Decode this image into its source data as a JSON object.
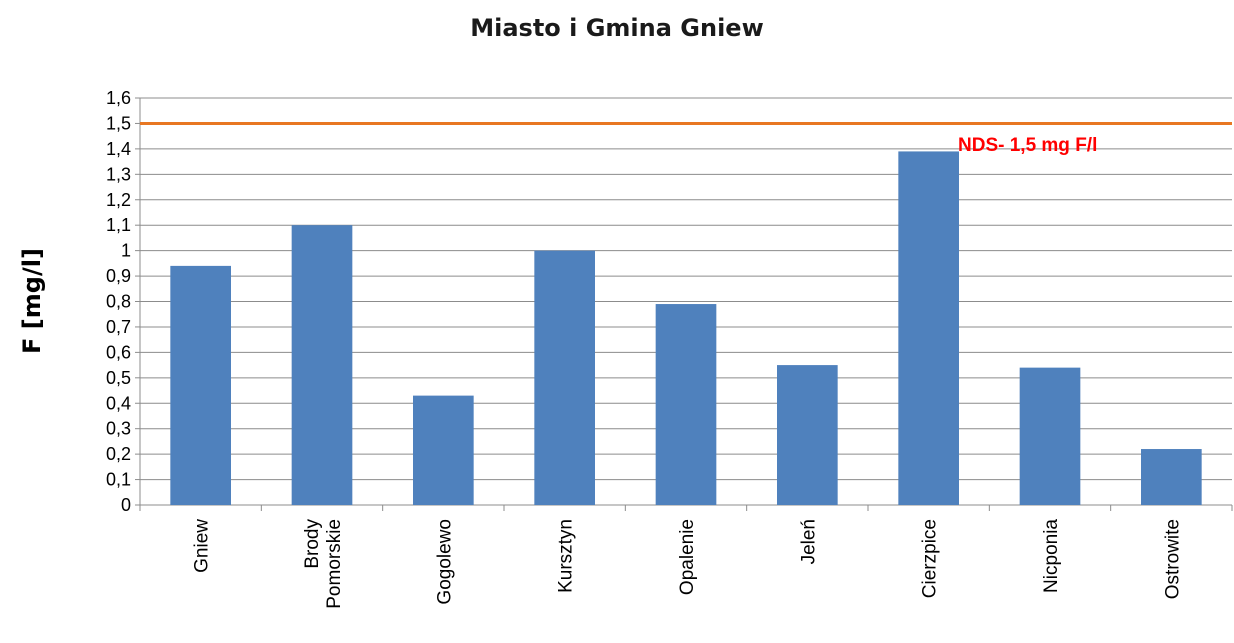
{
  "chart_data": {
    "type": "bar",
    "title": "Miasto i Gmina Gniew",
    "xlabel": "",
    "ylabel": "F [mg/l]",
    "categories": [
      "Gniew",
      "Brody Pomorskie",
      "Gogolewo",
      "Kursztyn",
      "Opalenie",
      "Jeleń",
      "Cierzpice",
      "Nicponia",
      "Ostrowite"
    ],
    "category_lines": [
      [
        "Gniew"
      ],
      [
        "Brody",
        "Pomorskie"
      ],
      [
        "Gogolewo"
      ],
      [
        "Kursztyn"
      ],
      [
        "Opalenie"
      ],
      [
        "Jeleń"
      ],
      [
        "Cierzpice"
      ],
      [
        "Nicponia"
      ],
      [
        "Ostrowite"
      ]
    ],
    "series": [
      {
        "values": [
          0.94,
          1.1,
          0.43,
          1.0,
          0.79,
          0.55,
          1.39,
          0.54,
          0.22
        ]
      }
    ],
    "ylim": [
      0,
      1.6
    ],
    "yticks": [
      "0",
      "0,1",
      "0,2",
      "0,3",
      "0,4",
      "0,5",
      "0,6",
      "0,7",
      "0,8",
      "0,9",
      "1",
      "1,1",
      "1,2",
      "1,3",
      "1,4",
      "1,5",
      "1,6"
    ],
    "grid": true,
    "reference_line": {
      "value": 1.5,
      "label": "NDS- 1,5 mg F/l",
      "color": "#e87722",
      "label_color": "#ff0000"
    },
    "bar_color": "#4f81bd"
  }
}
